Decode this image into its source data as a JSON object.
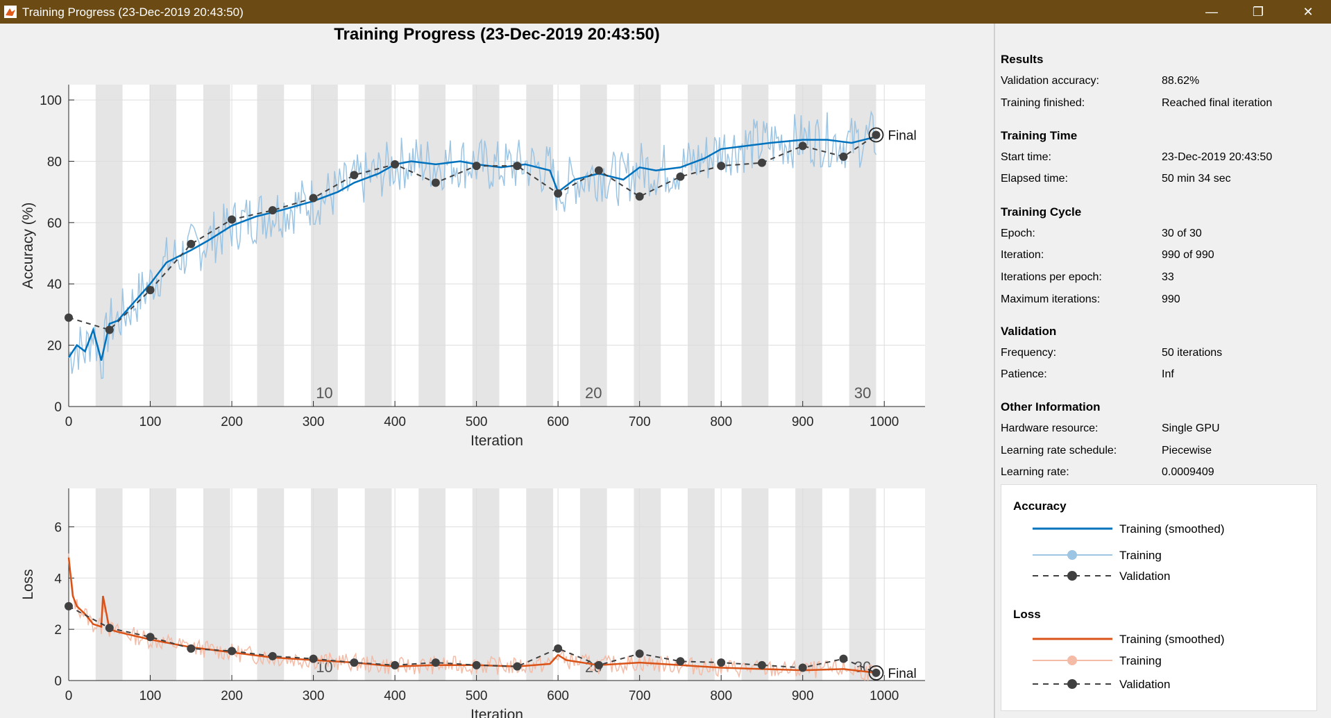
{
  "window": {
    "title": "Training Progress (23-Dec-2019 20:43:50)"
  },
  "main_title": "Training Progress (23-Dec-2019 20:43:50)",
  "colors": {
    "acc": "#0072bd",
    "acc_raw": "#9cc4e3",
    "loss": "#d95319",
    "loss_raw": "#f4bba6",
    "val": "#404040",
    "band": "#e5e5e5"
  },
  "info": {
    "results_title": "Results",
    "validation_accuracy_label": "Validation accuracy:",
    "validation_accuracy": "88.62%",
    "training_finished_label": "Training finished:",
    "training_finished": "Reached final iteration",
    "time_title": "Training Time",
    "start_time_label": "Start time:",
    "start_time": "23-Dec-2019 20:43:50",
    "elapsed_time_label": "Elapsed time:",
    "elapsed_time": "50 min 34 sec",
    "cycle_title": "Training Cycle",
    "epoch_label": "Epoch:",
    "epoch": "30 of 30",
    "iteration_label": "Iteration:",
    "iteration": "990 of 990",
    "iter_per_epoch_label": "Iterations per epoch:",
    "iter_per_epoch": "33",
    "max_iter_label": "Maximum iterations:",
    "max_iter": "990",
    "validation_title": "Validation",
    "frequency_label": "Frequency:",
    "frequency": "50 iterations",
    "patience_label": "Patience:",
    "patience": "Inf",
    "other_title": "Other Information",
    "hardware_label": "Hardware resource:",
    "hardware": "Single GPU",
    "lr_schedule_label": "Learning rate schedule:",
    "lr_schedule": "Piecewise",
    "lr_label": "Learning rate:",
    "lr": "0.0009409"
  },
  "legend": {
    "accuracy_title": "Accuracy",
    "acc_smoothed": "Training (smoothed)",
    "acc_training": "Training",
    "acc_validation": "Validation",
    "loss_title": "Loss",
    "loss_smoothed": "Training (smoothed)",
    "loss_training": "Training",
    "loss_validation": "Validation"
  },
  "chart_data": [
    {
      "type": "line",
      "title": "",
      "xlabel": "Iteration",
      "ylabel": "Accuracy (%)",
      "xlim": [
        0,
        1050
      ],
      "ylim": [
        0,
        105
      ],
      "xticks": [
        0,
        100,
        200,
        300,
        400,
        500,
        600,
        700,
        800,
        900,
        1000
      ],
      "yticks": [
        0,
        20,
        40,
        60,
        80,
        100
      ],
      "grid": true,
      "epoch_labels": [
        "10",
        "20",
        "30"
      ],
      "final_label": "Final",
      "smoothed_series": {
        "name": "Training (smoothed)",
        "x": [
          0,
          10,
          20,
          30,
          40,
          50,
          60,
          70,
          80,
          100,
          120,
          150,
          170,
          200,
          230,
          260,
          300,
          330,
          350,
          380,
          400,
          420,
          450,
          480,
          500,
          530,
          560,
          590,
          600,
          620,
          650,
          680,
          700,
          720,
          750,
          780,
          800,
          830,
          860,
          900,
          930,
          960,
          990
        ],
        "y": [
          16,
          20,
          18,
          25,
          15,
          27,
          28,
          31,
          34,
          40,
          47,
          51,
          54,
          59,
          62,
          64,
          67,
          70,
          73,
          76,
          79,
          80,
          79,
          80,
          79,
          78,
          79,
          77,
          70,
          74,
          76,
          74,
          78,
          77,
          78,
          81,
          84,
          85,
          86,
          87,
          87,
          86,
          88
        ]
      },
      "validation_series": {
        "name": "Validation",
        "x": [
          0,
          50,
          100,
          150,
          200,
          250,
          300,
          350,
          400,
          450,
          500,
          550,
          600,
          650,
          700,
          750,
          800,
          850,
          900,
          950,
          990
        ],
        "y": [
          29,
          25,
          38,
          53,
          61,
          64,
          68,
          75.5,
          79,
          73,
          78.5,
          78.5,
          69.5,
          77,
          68.5,
          75,
          78.5,
          79.5,
          85,
          81.5,
          88.6
        ]
      }
    },
    {
      "type": "line",
      "title": "",
      "xlabel": "Iteration",
      "ylabel": "Loss",
      "xlim": [
        0,
        1050
      ],
      "ylim": [
        0,
        7.5
      ],
      "xticks": [
        0,
        100,
        200,
        300,
        400,
        500,
        600,
        700,
        800,
        900,
        1000
      ],
      "yticks": [
        0,
        2,
        4,
        6
      ],
      "grid": true,
      "epoch_labels": [
        "10",
        "20",
        "30"
      ],
      "final_label": "Final",
      "smoothed_series": {
        "name": "Training (smoothed)",
        "x": [
          0,
          5,
          10,
          20,
          30,
          40,
          42,
          50,
          60,
          80,
          100,
          150,
          200,
          250,
          300,
          350,
          400,
          450,
          500,
          550,
          590,
          600,
          610,
          650,
          700,
          750,
          800,
          850,
          900,
          950,
          990
        ],
        "y": [
          4.8,
          3.3,
          2.9,
          2.6,
          2.2,
          2.1,
          3.3,
          2.0,
          1.9,
          1.75,
          1.6,
          1.3,
          1.1,
          0.9,
          0.8,
          0.7,
          0.55,
          0.6,
          0.6,
          0.55,
          0.65,
          1.0,
          0.8,
          0.6,
          0.7,
          0.6,
          0.5,
          0.45,
          0.4,
          0.45,
          0.3
        ]
      },
      "validation_series": {
        "name": "Validation",
        "x": [
          0,
          50,
          100,
          150,
          200,
          250,
          300,
          350,
          400,
          450,
          500,
          550,
          600,
          650,
          700,
          750,
          800,
          850,
          900,
          950,
          990
        ],
        "y": [
          2.9,
          2.05,
          1.7,
          1.25,
          1.15,
          0.95,
          0.85,
          0.7,
          0.6,
          0.7,
          0.6,
          0.55,
          1.25,
          0.6,
          1.05,
          0.75,
          0.7,
          0.6,
          0.5,
          0.85,
          0.3
        ]
      }
    }
  ]
}
